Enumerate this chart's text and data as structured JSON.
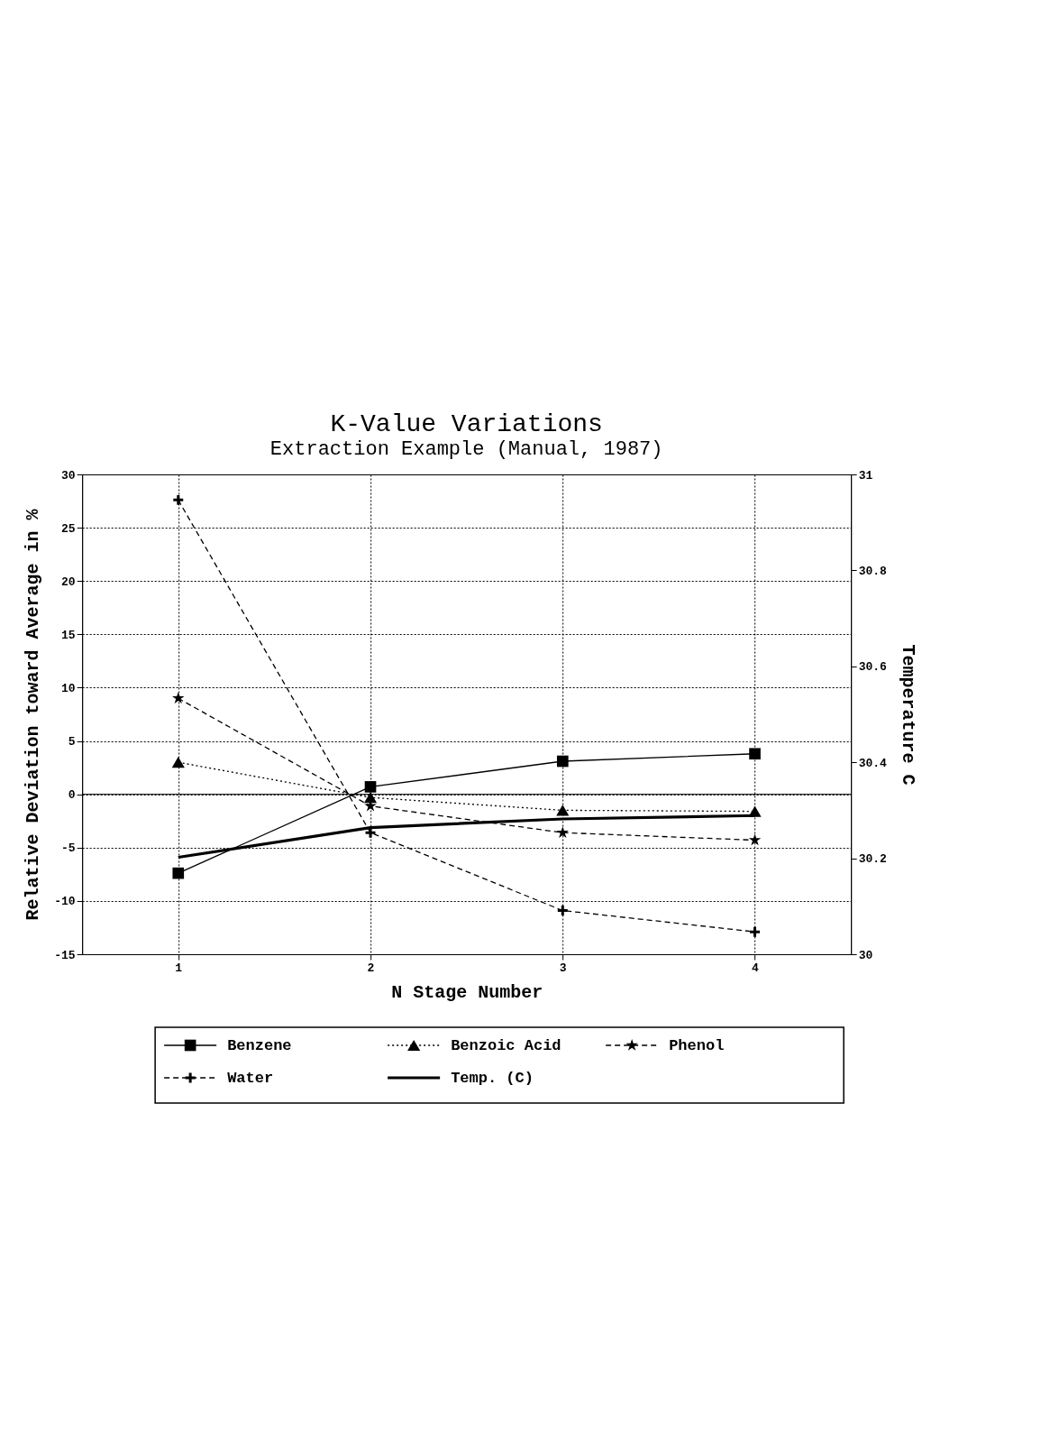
{
  "chart_data": {
    "type": "line",
    "title": "K-Value Variations",
    "subtitle": "Extraction Example (Manual, 1987)",
    "xlabel": "N Stage Number",
    "ylabel": "Relative Deviation toward Average in %",
    "y2label": "Temperature C",
    "x": [
      1,
      2,
      3,
      4
    ],
    "xlim": [
      0.5,
      4.5
    ],
    "xticks": [
      1,
      2,
      3,
      4
    ],
    "ylim": [
      -15,
      30
    ],
    "yticks": [
      -15,
      -10,
      -5,
      0,
      5,
      10,
      15,
      20,
      25,
      30
    ],
    "y2lim": [
      30,
      31
    ],
    "y2ticks": [
      30,
      {
        "value": 30.2,
        "label": "30.2"
      },
      {
        "value": 30.4,
        "label": "30.4"
      },
      {
        "value": 30.6,
        "label": "30.6"
      },
      {
        "value": 30.8,
        "label": "30.8"
      },
      31
    ],
    "grid": true,
    "legend": "bottom",
    "ref_lines": [
      {
        "axis": "y",
        "value": 0,
        "color": "#000000",
        "line_style": "solid"
      }
    ],
    "series": [
      {
        "name": "Benzene",
        "color": "#000000",
        "marker": "square",
        "line_style": "solid",
        "values": [
          -7.4,
          0.7,
          3.1,
          3.8
        ]
      },
      {
        "name": "Benzoic Acid",
        "color": "#000000",
        "marker": "triangle",
        "line_style": "dotted",
        "values": [
          3.0,
          -0.3,
          -1.5,
          -1.6
        ]
      },
      {
        "name": "Phenol",
        "color": "#000000",
        "marker": "star",
        "line_style": "dashed",
        "values": [
          9.0,
          -1.1,
          -3.6,
          -4.3
        ]
      },
      {
        "name": "Water",
        "color": "#000000",
        "marker": "cross",
        "line_style": "dashed",
        "values": [
          27.6,
          -3.6,
          -10.9,
          -12.9
        ]
      },
      {
        "name": "Temp. (C)",
        "color": "#000000",
        "marker": "none",
        "line_style": "solid",
        "axis": "y2",
        "values": [
          30.202,
          30.264,
          30.282,
          30.289
        ]
      }
    ]
  }
}
